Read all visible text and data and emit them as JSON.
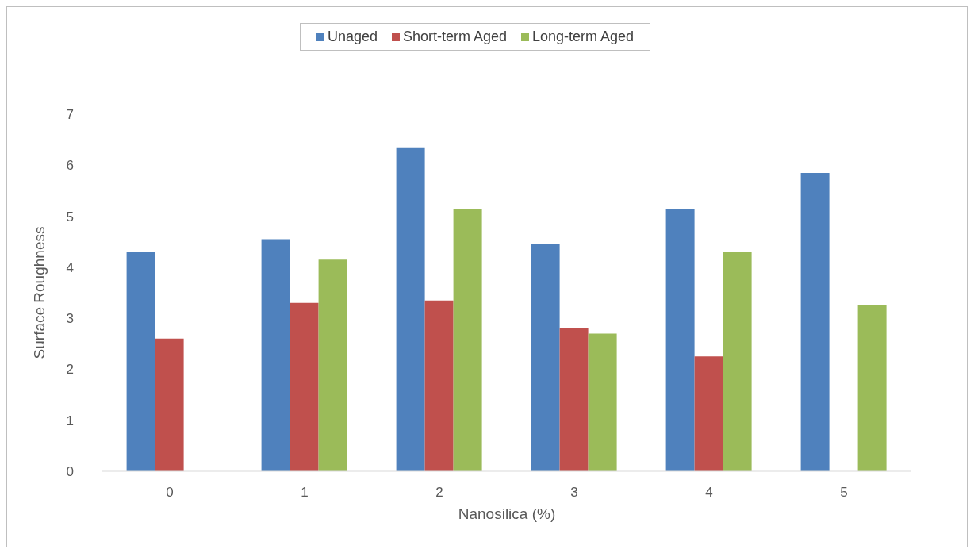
{
  "chart_data": {
    "type": "bar",
    "xlabel": "Nanosilica (%)",
    "ylabel": "Surface Roughness",
    "categories": [
      "0",
      "1",
      "2",
      "3",
      "4",
      "5"
    ],
    "series": [
      {
        "name": "Unaged",
        "color": "#4f81bd",
        "values": [
          4.3,
          4.55,
          6.35,
          4.45,
          5.15,
          5.85
        ]
      },
      {
        "name": "Short-term Aged",
        "color": "#c0504d",
        "values": [
          2.6,
          3.3,
          3.35,
          2.8,
          2.25,
          0
        ]
      },
      {
        "name": "Long-term Aged",
        "color": "#9bbb59",
        "values": [
          0,
          4.15,
          5.15,
          2.7,
          4.3,
          3.25
        ]
      }
    ],
    "ylim": [
      0,
      7
    ],
    "yticks": [
      0,
      1,
      2,
      3,
      4,
      5,
      6,
      7
    ],
    "grid": false,
    "legend": "top"
  }
}
